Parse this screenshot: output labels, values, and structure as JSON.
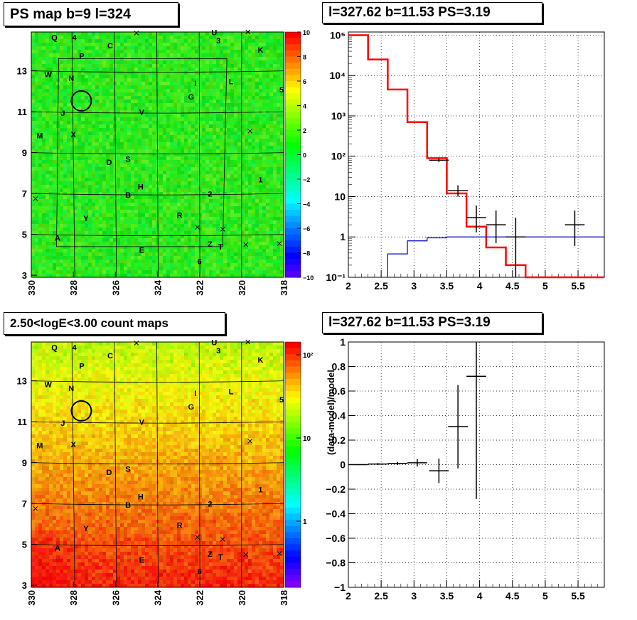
{
  "panels": {
    "tl_title": "PS map b=9 l=324",
    "tr_title": "l=327.62 b=11.53 PS=3.19",
    "bl_title": "2.50<logE<3.00 count maps",
    "br_title": "l=327.62 b=11.53 PS=3.19"
  },
  "colors": {
    "red": "#ff0000",
    "blue": "#0000cc",
    "black": "#000000"
  },
  "map_axes": {
    "x_ticks": [
      "330",
      "328",
      "326",
      "324",
      "322",
      "320",
      "318"
    ],
    "y_ticks": [
      "3",
      "5",
      "7",
      "9",
      "11",
      "13"
    ],
    "ps_scale_ticks": [
      "10",
      "8",
      "6",
      "4",
      "2",
      "0",
      "−2",
      "−4",
      "−6",
      "−8",
      "−10"
    ],
    "count_scale_ticks": [
      "10²",
      "10",
      "1"
    ]
  },
  "source_labels": [
    {
      "t": "Q",
      "l": 328.9,
      "b": 14.5
    },
    {
      "t": "4",
      "l": 327.95,
      "b": 14.5
    },
    {
      "t": "C",
      "l": 326.25,
      "b": 14.1
    },
    {
      "t": "U",
      "l": 321.3,
      "b": 14.75
    },
    {
      "t": "3",
      "l": 321.1,
      "b": 14.35
    },
    {
      "t": "K",
      "l": 319.1,
      "b": 13.9
    },
    {
      "t": "P",
      "l": 327.6,
      "b": 13.6
    },
    {
      "t": "W",
      "l": 329.2,
      "b": 12.7
    },
    {
      "t": "N",
      "l": 328.1,
      "b": 12.5
    },
    {
      "t": "I",
      "l": 322.2,
      "b": 12.25
    },
    {
      "t": "L",
      "l": 320.5,
      "b": 12.35
    },
    {
      "t": "5",
      "l": 318.1,
      "b": 11.95
    },
    {
      "t": "G",
      "l": 322.4,
      "b": 11.6
    },
    {
      "t": "J",
      "l": 328.5,
      "b": 10.8
    },
    {
      "t": "V",
      "l": 324.75,
      "b": 10.85
    },
    {
      "t": "M",
      "l": 329.6,
      "b": 9.7
    },
    {
      "t": "X",
      "l": 328.0,
      "b": 9.75
    },
    {
      "t": "D",
      "l": 326.3,
      "b": 8.4
    },
    {
      "t": "S",
      "l": 325.4,
      "b": 8.55
    },
    {
      "t": "1",
      "l": 319.1,
      "b": 7.55
    },
    {
      "t": "H",
      "l": 324.8,
      "b": 7.2
    },
    {
      "t": "B",
      "l": 325.4,
      "b": 6.8
    },
    {
      "t": "2",
      "l": 321.5,
      "b": 6.85
    },
    {
      "t": "R",
      "l": 322.95,
      "b": 5.8
    },
    {
      "t": "Y",
      "l": 327.4,
      "b": 5.65
    },
    {
      "t": "A",
      "l": 328.75,
      "b": 4.7
    },
    {
      "t": "Z",
      "l": 321.5,
      "b": 4.4
    },
    {
      "t": "T",
      "l": 321.0,
      "b": 4.25
    },
    {
      "t": "E",
      "l": 324.75,
      "b": 4.1
    },
    {
      "t": "6",
      "l": 322.0,
      "b": 3.55
    }
  ],
  "cross_markers": [
    {
      "l": 325.0,
      "b": 14.85
    },
    {
      "l": 319.7,
      "b": 14.9
    },
    {
      "l": 319.6,
      "b": 10.05
    },
    {
      "l": 329.8,
      "b": 6.75
    },
    {
      "l": 322.1,
      "b": 5.35
    },
    {
      "l": 320.9,
      "b": 5.25
    },
    {
      "l": 319.8,
      "b": 4.5
    },
    {
      "l": 318.2,
      "b": 4.55
    }
  ],
  "circle_marker": {
    "l": 327.62,
    "b": 11.53
  },
  "chart_data": [
    {
      "type": "line",
      "panel": "top-right",
      "title": "l=327.62 b=11.53 PS=3.19",
      "xlim": [
        2,
        5.9
      ],
      "ylim": [
        0.1,
        120000
      ],
      "y_scale": "log",
      "grid": true,
      "x_ticks": [
        "2",
        "2.5",
        "3",
        "3.5",
        "4",
        "4.5",
        "5",
        "5.5"
      ],
      "y_ticks": [
        "10⁻¹",
        "1",
        "10",
        "10²",
        "10³",
        "10⁴",
        "10⁵"
      ],
      "series": [
        {
          "style": "step",
          "color": "red",
          "edges": [
            2,
            2.3,
            2.6,
            2.9,
            3.2,
            3.5,
            3.8,
            4.1,
            4.4,
            4.7,
            5.0,
            5.9
          ],
          "values": [
            100000,
            25000,
            4500,
            700,
            90,
            12,
            1.8,
            0.55,
            0.2,
            0.1,
            0.1
          ]
        },
        {
          "style": "step",
          "color": "blue",
          "edges": [
            2.6,
            2.9,
            3.2,
            3.5,
            3.8,
            4.1,
            5.9
          ],
          "values": [
            0.38,
            0.8,
            0.95,
            1.0,
            1.0,
            1.0
          ]
        },
        {
          "style": "errorbar",
          "color": "black",
          "points": [
            {
              "x": 3.38,
              "y": 80,
              "xerr": 0.15,
              "ylo": 72,
              "yhi": 88
            },
            {
              "x": 3.67,
              "y": 14,
              "xerr": 0.15,
              "ylo": 10,
              "yhi": 19
            },
            {
              "x": 3.95,
              "y": 3,
              "xerr": 0.15,
              "ylo": 1.3,
              "yhi": 6
            },
            {
              "x": 4.25,
              "y": 2,
              "xerr": 0.15,
              "ylo": 0.7,
              "yhi": 4.5
            },
            {
              "x": 4.55,
              "y": 1,
              "xerr": 0.15,
              "ylo": 0.1,
              "yhi": 3
            },
            {
              "x": 5.45,
              "y": 2,
              "xerr": 0.15,
              "ylo": 0.6,
              "yhi": 4.5
            }
          ]
        }
      ]
    },
    {
      "type": "scatter",
      "panel": "bottom-right",
      "title": "l=327.62 b=11.53 PS=3.19",
      "ylabel": "(data-model)/model",
      "xlim": [
        2,
        5.9
      ],
      "ylim": [
        -1,
        1
      ],
      "grid": true,
      "x_ticks": [
        "2",
        "2.5",
        "3",
        "3.5",
        "4",
        "4.5",
        "5",
        "5.5"
      ],
      "y_ticks": [
        "−1",
        "−0.8",
        "−0.6",
        "−0.4",
        "−0.2",
        "0",
        "0.2",
        "0.4",
        "0.6",
        "0.8",
        "1"
      ],
      "points": [
        {
          "x": 2.15,
          "y": 0.0,
          "xerr": 0.15,
          "yerr": 0.005
        },
        {
          "x": 2.45,
          "y": 0.005,
          "xerr": 0.15,
          "yerr": 0.008
        },
        {
          "x": 2.75,
          "y": 0.01,
          "xerr": 0.15,
          "yerr": 0.012
        },
        {
          "x": 3.05,
          "y": 0.015,
          "xerr": 0.15,
          "yerr": 0.03
        },
        {
          "x": 3.38,
          "y": -0.05,
          "xerr": 0.15,
          "yerr": 0.1
        },
        {
          "x": 3.67,
          "y": 0.31,
          "xerr": 0.15,
          "ylo": -0.03,
          "yhi": 0.65
        },
        {
          "x": 3.95,
          "y": 0.72,
          "xerr": 0.15,
          "ylo": -0.28,
          "yhi": 1.0
        }
      ]
    }
  ]
}
